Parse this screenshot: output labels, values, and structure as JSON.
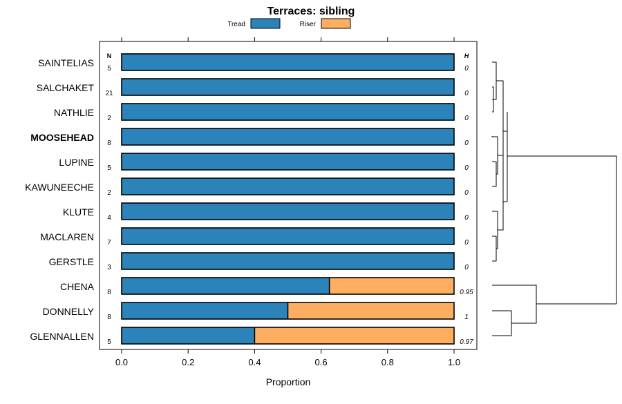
{
  "chart_data": {
    "type": "bar",
    "orientation": "horizontal",
    "stacked": true,
    "title": "Terraces: sibling",
    "xlabel": "Proportion",
    "xlim": [
      -0.06,
      1.07
    ],
    "xticks": [
      0.0,
      0.2,
      0.4,
      0.6,
      0.8,
      1.0
    ],
    "xtick_labels": [
      "0.0",
      "0.2",
      "0.4",
      "0.6",
      "0.8",
      "1.0"
    ],
    "legend": [
      {
        "name": "Tread",
        "color": "#2b83ba"
      },
      {
        "name": "Riser",
        "color": "#fdae61"
      }
    ],
    "n_header": "N",
    "h_header": "H",
    "highlighted_category": "MOOSEHEAD",
    "categories": [
      "SAINTELIAS",
      "SALCHAKET",
      "NATHLIE",
      "MOOSEHEAD",
      "LUPINE",
      "KAWUNEECHE",
      "KLUTE",
      "MACLAREN",
      "GERSTLE",
      "CHENA",
      "DONNELLY",
      "GLENNALLEN"
    ],
    "n": [
      "5",
      "21",
      "2",
      "8",
      "5",
      "2",
      "4",
      "7",
      "3",
      "8",
      "8",
      "5"
    ],
    "h": [
      "0",
      "0",
      "0",
      "0",
      "0",
      "0",
      "0",
      "0",
      "0",
      "0.95",
      "1",
      "0.97"
    ],
    "series": [
      {
        "name": "Tread",
        "values": [
          1,
          1,
          1,
          1,
          1,
          1,
          1,
          1,
          1,
          0.625,
          0.5,
          0.4
        ]
      },
      {
        "name": "Riser",
        "values": [
          0,
          0,
          0,
          0,
          0,
          0,
          0,
          0,
          0,
          0.375,
          0.5,
          0.6
        ]
      }
    ],
    "dendrogram": {
      "type": "hierarchical clustering",
      "leaf_order": [
        "SAINTELIAS",
        "SALCHAKET",
        "NATHLIE",
        "MOOSEHEAD",
        "LUPINE",
        "KAWUNEECHE",
        "KLUTE",
        "MACLAREN",
        "GERSTLE",
        "CHENA",
        "DONNELLY",
        "GLENNALLEN"
      ]
    }
  }
}
